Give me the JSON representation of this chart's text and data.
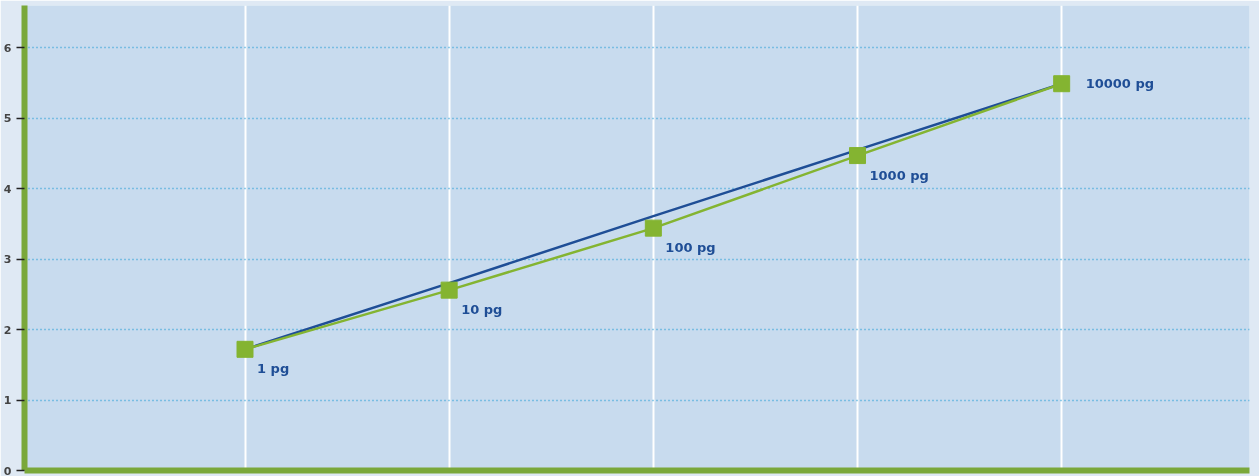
{
  "chart_data": {
    "type": "line",
    "categories": [
      null,
      null,
      null,
      null,
      null
    ],
    "ylim": [
      0,
      6.6
    ],
    "yticks": [
      0,
      1,
      2,
      3,
      4,
      5,
      6
    ],
    "grid": true,
    "series": [
      {
        "type": "line",
        "color": "#1f4e96",
        "marker": "none",
        "values": [
          1.72,
          2.66,
          3.61,
          4.55,
          5.49
        ]
      },
      {
        "color": "#84b431",
        "marker": "square",
        "values": [
          1.72,
          2.56,
          3.44,
          4.47,
          5.49
        ]
      }
    ],
    "annotations": [
      "1 pg",
      "10 pg",
      "100 pg",
      "1000 pg",
      "10000 pg"
    ]
  }
}
